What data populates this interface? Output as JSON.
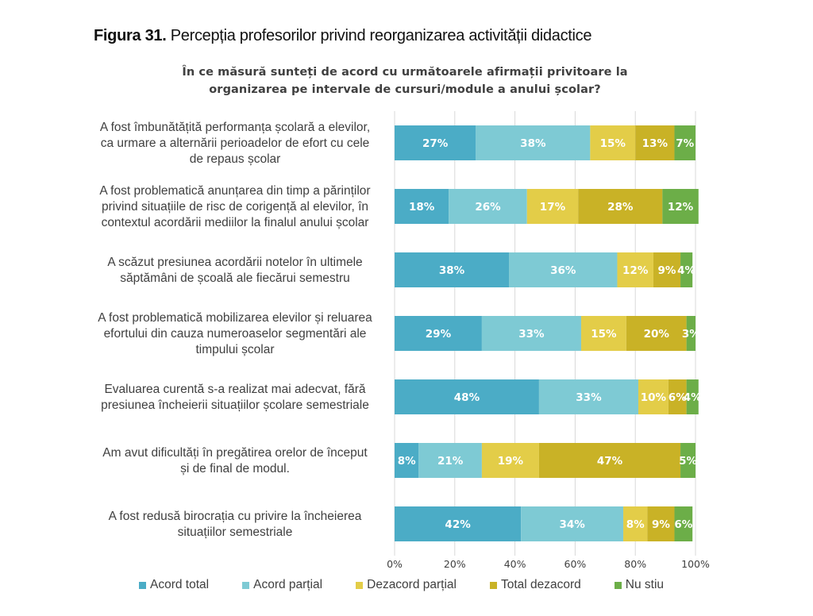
{
  "figure": {
    "number_label": "Figura 31.",
    "caption": " Percepția profesorilor privind reorganizarea activității didactice"
  },
  "chart_data": {
    "type": "bar",
    "orientation": "horizontal",
    "stacked": true,
    "percent": true,
    "title": "În ce măsură sunteți de acord cu următoarele afirmații privitoare la organizarea pe intervale de cursuri/module a anului școlar?",
    "title_lines": [
      "În ce măsură sunteți de acord cu următoarele afirmații privitoare la",
      "organizarea pe intervale de cursuri/module a anului școlar?"
    ],
    "xlabel": "",
    "ylabel": "",
    "xlim": [
      0,
      100
    ],
    "x_ticks": [
      "0%",
      "20%",
      "40%",
      "60%",
      "80%",
      "100%"
    ],
    "grid": true,
    "legend_position": "bottom",
    "categories": [
      [
        "A fost îmbunătățită performanța școlară a elevilor,",
        "ca urmare a alternării perioadelor de efort cu cele",
        "de repaus școlar"
      ],
      [
        "A fost problematică anunțarea din timp a părinților",
        "privind situațiile de risc de corigență al elevilor, în",
        "contextul acordării mediilor la finalul anului școlar"
      ],
      [
        "A scăzut presiunea acordării notelor în ultimele",
        "săptămâni de școală ale fiecărui semestru"
      ],
      [
        "A fost problematică mobilizarea elevilor și reluarea",
        "efortului din cauza numeroaselor segmentări ale",
        "timpului școlar"
      ],
      [
        "Evaluarea curentă s-a realizat mai adecvat, fără",
        "presiunea încheierii situațiilor școlare semestriale"
      ],
      [
        "Am avut dificultăți în pregătirea orelor de început",
        "și de final de modul."
      ],
      [
        "A fost redusă birocrația cu privire la încheierea",
        "situațiilor semestriale"
      ]
    ],
    "series": [
      {
        "name": "Acord total",
        "color": "#4BACC6",
        "values": [
          27,
          18,
          38,
          29,
          48,
          8,
          42
        ]
      },
      {
        "name": "Acord parțial",
        "color": "#7ECAD4",
        "values": [
          38,
          26,
          36,
          33,
          33,
          21,
          34
        ]
      },
      {
        "name": "Dezacord parțial",
        "color": "#E3CD48",
        "values": [
          15,
          17,
          12,
          15,
          10,
          19,
          8
        ]
      },
      {
        "name": "Total dezacord",
        "color": "#C9B226",
        "values": [
          13,
          28,
          9,
          20,
          6,
          47,
          9
        ]
      },
      {
        "name": "Nu stiu",
        "color": "#6CAE48",
        "values": [
          7,
          12,
          4,
          3,
          4,
          5,
          6
        ]
      }
    ],
    "data_labels": true
  }
}
